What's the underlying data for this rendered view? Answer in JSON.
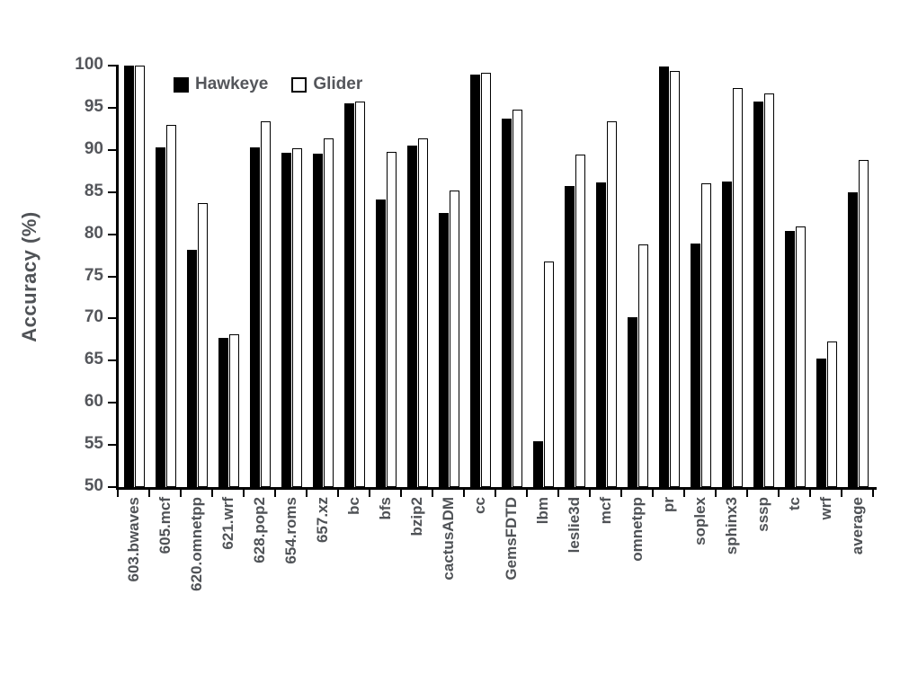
{
  "chart_data": {
    "type": "bar",
    "title": "",
    "ylabel": "Accuracy (%)",
    "xlabel": "",
    "ylim": [
      50,
      100
    ],
    "yticks": [
      50,
      55,
      60,
      65,
      70,
      75,
      80,
      85,
      90,
      95,
      100
    ],
    "grid": false,
    "legend_position": "top-inside",
    "categories": [
      "603.bwaves",
      "605.mcf",
      "620.omnetpp",
      "621.wrf",
      "628.pop2",
      "654.roms",
      "657.xz",
      "bc",
      "bfs",
      "bzip2",
      "cactusADM",
      "cc",
      "GemsFDTD",
      "lbm",
      "leslie3d",
      "mcf",
      "omnetpp",
      "pr",
      "soplex",
      "sphinx3",
      "sssp",
      "tc",
      "wrf",
      "average"
    ],
    "series": [
      {
        "name": "Hawkeye",
        "style": "filled-black",
        "values": [
          100,
          90.3,
          78.2,
          67.7,
          90.3,
          89.7,
          89.6,
          95.5,
          84.1,
          90.5,
          82.5,
          98.9,
          93.7,
          55.4,
          85.7,
          86.1,
          70.2,
          99.9,
          78.9,
          86.3,
          95.7,
          80.4,
          65.2,
          85.0
        ]
      },
      {
        "name": "Glider",
        "style": "open-white-black-border",
        "values": [
          100,
          93.0,
          83.7,
          68.1,
          93.4,
          90.2,
          91.4,
          95.7,
          89.8,
          91.4,
          85.2,
          99.2,
          94.8,
          76.8,
          89.4,
          93.4,
          78.8,
          99.4,
          86.0,
          97.3,
          96.7,
          80.9,
          67.3,
          88.8
        ]
      }
    ]
  },
  "colors": {
    "background": "#ffffff",
    "axis": "#000000",
    "text": "#54565b",
    "hawkeye_fill": "#000000",
    "glider_fill": "#ffffff",
    "glider_border": "#000000"
  }
}
